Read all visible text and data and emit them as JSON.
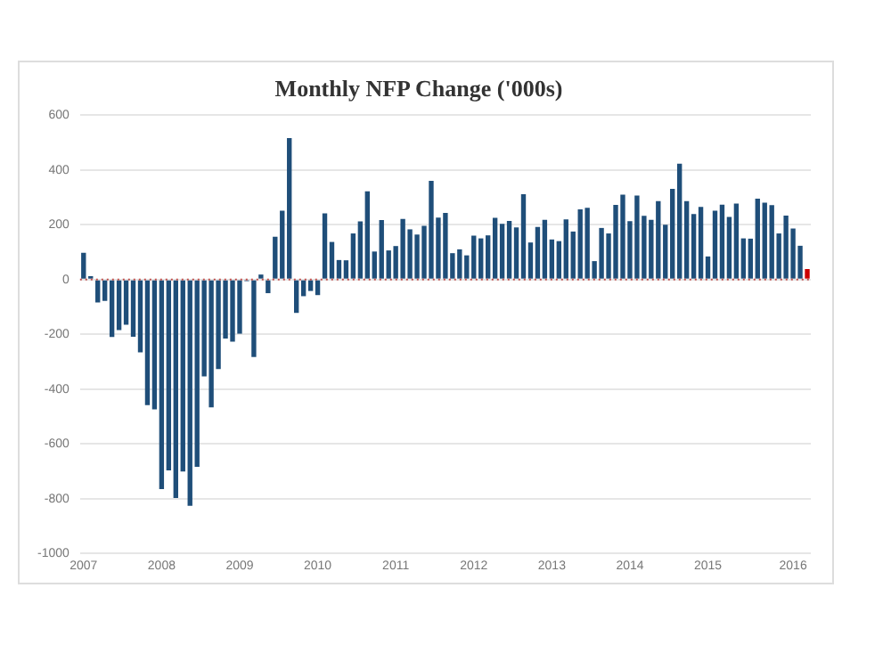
{
  "chart_data": {
    "type": "bar",
    "title": "Monthly NFP Change ('000s)",
    "categories": [
      "2007",
      null,
      null,
      null,
      null,
      null,
      null,
      null,
      null,
      null,
      null,
      "2008",
      null,
      null,
      null,
      null,
      null,
      null,
      null,
      null,
      null,
      null,
      "2009",
      null,
      null,
      null,
      null,
      null,
      null,
      null,
      null,
      null,
      null,
      "2010",
      null,
      null,
      null,
      null,
      null,
      null,
      null,
      null,
      null,
      null,
      "2011",
      null,
      null,
      null,
      null,
      null,
      null,
      null,
      null,
      null,
      null,
      "2012",
      null,
      null,
      null,
      null,
      null,
      null,
      null,
      null,
      null,
      null,
      "2013",
      null,
      null,
      null,
      null,
      null,
      null,
      null,
      null,
      null,
      null,
      "2014",
      null,
      null,
      null,
      null,
      null,
      null,
      null,
      null,
      null,
      null,
      "2015",
      null,
      null,
      null,
      null,
      null,
      null,
      null,
      null,
      null,
      null,
      null,
      "2016",
      null,
      null
    ],
    "values": [
      97,
      12,
      -84,
      -78,
      -210,
      -185,
      -165,
      -209,
      -266,
      -459,
      -474,
      -765,
      -697,
      -798,
      -701,
      -826,
      -684,
      -354,
      -467,
      -327,
      -216,
      -227,
      -198,
      -6,
      -283,
      18,
      -50,
      156,
      251,
      516,
      -122,
      -61,
      -42,
      -57,
      241,
      137,
      71,
      70,
      168,
      212,
      322,
      102,
      217,
      106,
      122,
      221,
      183,
      164,
      196,
      360,
      226,
      243,
      96,
      110,
      88,
      160,
      150,
      161,
      225,
      203,
      214,
      190,
      311,
      135,
      192,
      218,
      146,
      140,
      219,
      175,
      256,
      262,
      67,
      188,
      168,
      272,
      310,
      213,
      306,
      232,
      218,
      286,
      200,
      331,
      423,
      286,
      239,
      265,
      84,
      251,
      273,
      228,
      277,
      150,
      149,
      295,
      280,
      271,
      168,
      233,
      186,
      123,
      38
    ],
    "colors": [
      "#1f4e79",
      "#1f4e79",
      "#1f4e79",
      "#1f4e79",
      "#1f4e79",
      "#1f4e79",
      "#1f4e79",
      "#1f4e79",
      "#1f4e79",
      "#1f4e79",
      "#1f4e79",
      "#1f4e79",
      "#1f4e79",
      "#1f4e79",
      "#1f4e79",
      "#1f4e79",
      "#1f4e79",
      "#1f4e79",
      "#1f4e79",
      "#1f4e79",
      "#1f4e79",
      "#1f4e79",
      "#1f4e79",
      "#1f4e79",
      "#1f4e79",
      "#1f4e79",
      "#1f4e79",
      "#1f4e79",
      "#1f4e79",
      "#1f4e79",
      "#1f4e79",
      "#1f4e79",
      "#1f4e79",
      "#1f4e79",
      "#1f4e79",
      "#1f4e79",
      "#1f4e79",
      "#1f4e79",
      "#1f4e79",
      "#1f4e79",
      "#1f4e79",
      "#1f4e79",
      "#1f4e79",
      "#1f4e79",
      "#1f4e79",
      "#1f4e79",
      "#1f4e79",
      "#1f4e79",
      "#1f4e79",
      "#1f4e79",
      "#1f4e79",
      "#1f4e79",
      "#1f4e79",
      "#1f4e79",
      "#1f4e79",
      "#1f4e79",
      "#1f4e79",
      "#1f4e79",
      "#1f4e79",
      "#1f4e79",
      "#1f4e79",
      "#1f4e79",
      "#1f4e79",
      "#1f4e79",
      "#1f4e79",
      "#1f4e79",
      "#1f4e79",
      "#1f4e79",
      "#1f4e79",
      "#1f4e79",
      "#1f4e79",
      "#1f4e79",
      "#1f4e79",
      "#1f4e79",
      "#1f4e79",
      "#1f4e79",
      "#1f4e79",
      "#1f4e79",
      "#1f4e79",
      "#1f4e79",
      "#1f4e79",
      "#1f4e79",
      "#1f4e79",
      "#1f4e79",
      "#1f4e79",
      "#1f4e79",
      "#1f4e79",
      "#1f4e79",
      "#1f4e79",
      "#1f4e79",
      "#1f4e79",
      "#1f4e79",
      "#1f4e79",
      "#1f4e79",
      "#1f4e79",
      "#1f4e79",
      "#1f4e79",
      "#1f4e79",
      "#1f4e79",
      "#1f4e79",
      "#1f4e79",
      "#1f4e79",
      "#cc0000"
    ],
    "ylim": [
      -1000,
      600
    ],
    "yticks": [
      -1000,
      -800,
      -600,
      -400,
      -200,
      0,
      200,
      400,
      600
    ],
    "grid": "y",
    "ref_lines": [
      {
        "axis": "y",
        "value": 0,
        "color": "#c0504d",
        "line_style": "dotted"
      }
    ]
  }
}
